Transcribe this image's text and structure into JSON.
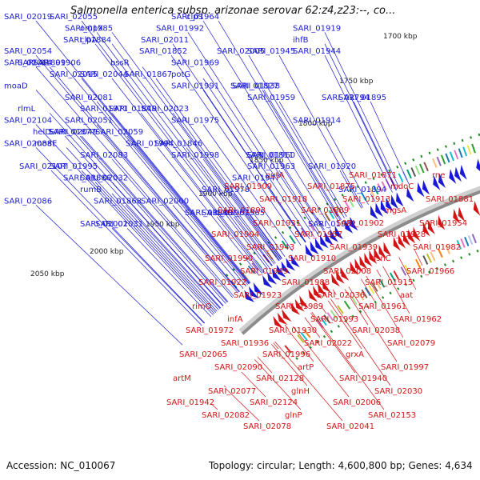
{
  "title": "Salmonella enterica subsp. arizonae serovar 62:z4,z23:--, co...",
  "footer": {
    "accession": "Accession: NC_010067",
    "topology": "Topology: circular; Length: 4,600,800 bp; Genes: 4,634"
  },
  "colors": {
    "forward": "#1a1ad6",
    "reverse": "#d41414",
    "backbone": "#8c8c8c",
    "tick": "#228822"
  },
  "kbp_ticks": [
    "1700 kbp",
    "1750 kbp",
    "1800 kbp",
    "1850 kbp",
    "1900 kbp",
    "1950 kbp",
    "2000 kbp",
    "2050 kbp"
  ],
  "forward_labels": [
    "SARI_02019",
    "SARI_01985",
    "clpA",
    "SARI_01945",
    "SARI_01899",
    "SARI_01867",
    "SARI_01827",
    "SARI_01794",
    "SARI_02054",
    "SARI_01971",
    "SARI_01914",
    "SARI_01877",
    "SARI_01846",
    "SARI_01811",
    "SARI_02064",
    "SARI_01995",
    "SARI_01947",
    "SARI_01894",
    "SARI_01868",
    "SARI_01830",
    "SARI_02001",
    "SARI_01964",
    "SARI_01919",
    "SARI_01884",
    "SARI_01852",
    "SARI_01969",
    "SARI_02015",
    "SARI_01938",
    "SARI_01895",
    "SARI_01870",
    "SARI_01975",
    "SARI_02049",
    "SARI_01994",
    "SARI_01960",
    "SARI_01920",
    "SARI_01886",
    "rumB",
    "SARI_02000",
    "SARI_01965",
    "SARI_01932",
    "SARI_02055",
    "SARI_01992",
    "ihfB",
    "SARI_01944",
    "SARI_01906",
    "SARI_02044",
    "SARI_01991",
    "SARI_01959",
    "rlmL",
    "SARI_02051",
    "helD",
    "SARI_02088",
    "SARI_01998",
    "SARI_01963",
    "SARI_02032",
    "SARI_01978",
    "SARI_02086",
    "SARI_01987",
    "SARI_02031",
    "clpS",
    "ompX",
    "SARI_02011",
    "SARI_02005",
    "bssR",
    "potG",
    "moaD",
    "SARI_02081",
    "SARI_02023",
    "SARI_02104",
    "SARI_02059",
    "moaE",
    "SARI_02083",
    "SARI_02107"
  ],
  "reverse_labels": [
    "rne",
    "mdoC",
    "SARI_01871",
    "SARI_01875",
    "putA",
    "SARI_01909",
    "SARI_01881",
    "mgsA",
    "SARI_01913",
    "SARI_01889",
    "SARI_01918",
    "SARI_01893",
    "SARI_01954",
    "SARI_01928",
    "SARI_01902",
    "SARI_01957",
    "SARI_01931",
    "SARI_01904",
    "SARI_01982",
    "asnC",
    "SARI_01939",
    "SARI_01910",
    "SARI_01943",
    "SARI_01990",
    "SARI_01966",
    "SARI_01915",
    "SARI_02008",
    "SARI_01988",
    "SARI_01949",
    "SARI_01922",
    "aat",
    "SARI_01961",
    "SARI_02036",
    "SARI_01989",
    "SARI_01923",
    "rimO",
    "SARI_01962",
    "SARI_02038",
    "SARI_01993",
    "SARI_01930",
    "infA",
    "SARI_01972",
    "SARI_02079",
    "grxA",
    "SARI_02022",
    "SARI_01996",
    "SARI_01936",
    "SARI_02065",
    "SARI_01997",
    "SARI_01940",
    "artP",
    "SARI_02128",
    "SARI_02090",
    "artM",
    "SARI_02030",
    "SARI_02006",
    "glnH",
    "SARI_02124",
    "SARI_02077",
    "SARI_01942",
    "SARI_02153",
    "SARI_02041",
    "glnP",
    "SARI_02078",
    "SARI_02082"
  ]
}
